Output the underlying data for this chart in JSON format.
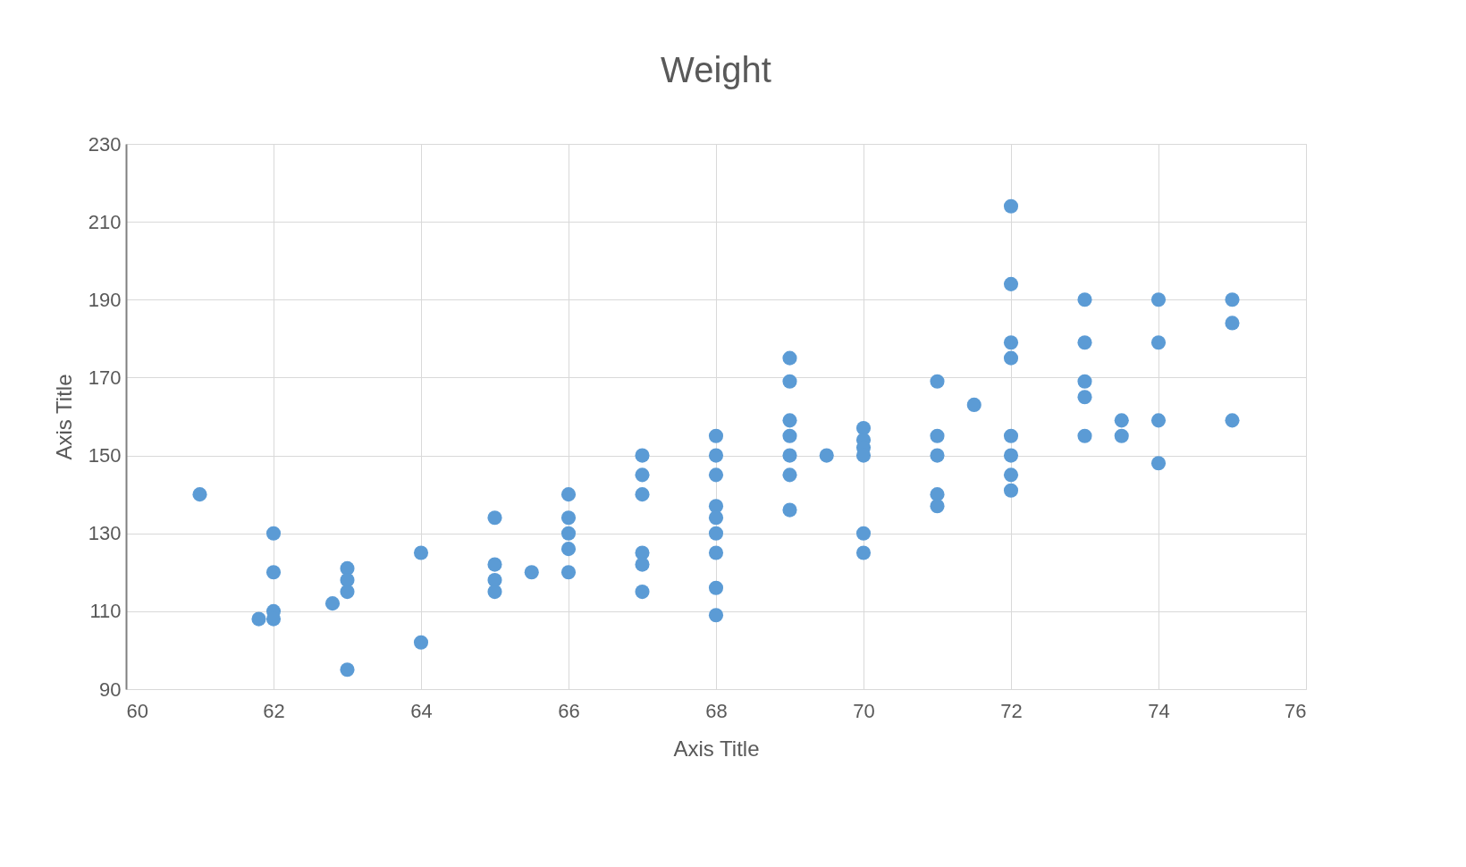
{
  "chart_data": {
    "type": "scatter",
    "title": "Weight",
    "xlabel": "Axis Title",
    "ylabel": "Axis Title",
    "xlim": [
      60,
      76
    ],
    "xticks": [
      60,
      62,
      64,
      66,
      68,
      70,
      72,
      74,
      76
    ],
    "ylim": [
      90,
      230
    ],
    "yticks": [
      90,
      110,
      130,
      150,
      170,
      190,
      210,
      230
    ],
    "grid": true,
    "legend": false,
    "marker": "circle",
    "series": [
      {
        "color": "#5b9bd5",
        "x": [
          61,
          61.8,
          62,
          62,
          62,
          62,
          62.8,
          63,
          63,
          63,
          63,
          64,
          64,
          65,
          65,
          65,
          65,
          65.5,
          66,
          66,
          66,
          66,
          66,
          67,
          67,
          67,
          67,
          67,
          67,
          68,
          68,
          68,
          68,
          68,
          68,
          68,
          68,
          68,
          69,
          69,
          69,
          69,
          69,
          69,
          69,
          69.5,
          70,
          70,
          70,
          70,
          70,
          70,
          71,
          71,
          71,
          71,
          71,
          71.5,
          72,
          72,
          72,
          72,
          72,
          72,
          72,
          72,
          73,
          73,
          73,
          73,
          73,
          73.5,
          73.5,
          74,
          74,
          74,
          74,
          75,
          75,
          75
        ],
        "values": [
          140,
          108,
          130,
          120,
          110,
          108,
          112,
          121,
          118,
          115,
          95,
          125,
          102,
          134,
          122,
          118,
          115,
          120,
          140,
          134,
          130,
          126,
          120,
          150,
          145,
          140,
          125,
          122,
          115,
          155,
          150,
          145,
          137,
          134,
          130,
          125,
          116,
          109,
          175,
          169,
          159,
          155,
          150,
          145,
          136,
          150,
          157,
          154,
          152,
          150,
          130,
          125,
          169,
          155,
          150,
          140,
          137,
          163,
          214,
          194,
          179,
          175,
          155,
          150,
          145,
          141,
          190,
          179,
          169,
          165,
          155,
          159,
          155,
          190,
          179,
          159,
          148,
          190,
          184,
          159
        ]
      }
    ]
  }
}
